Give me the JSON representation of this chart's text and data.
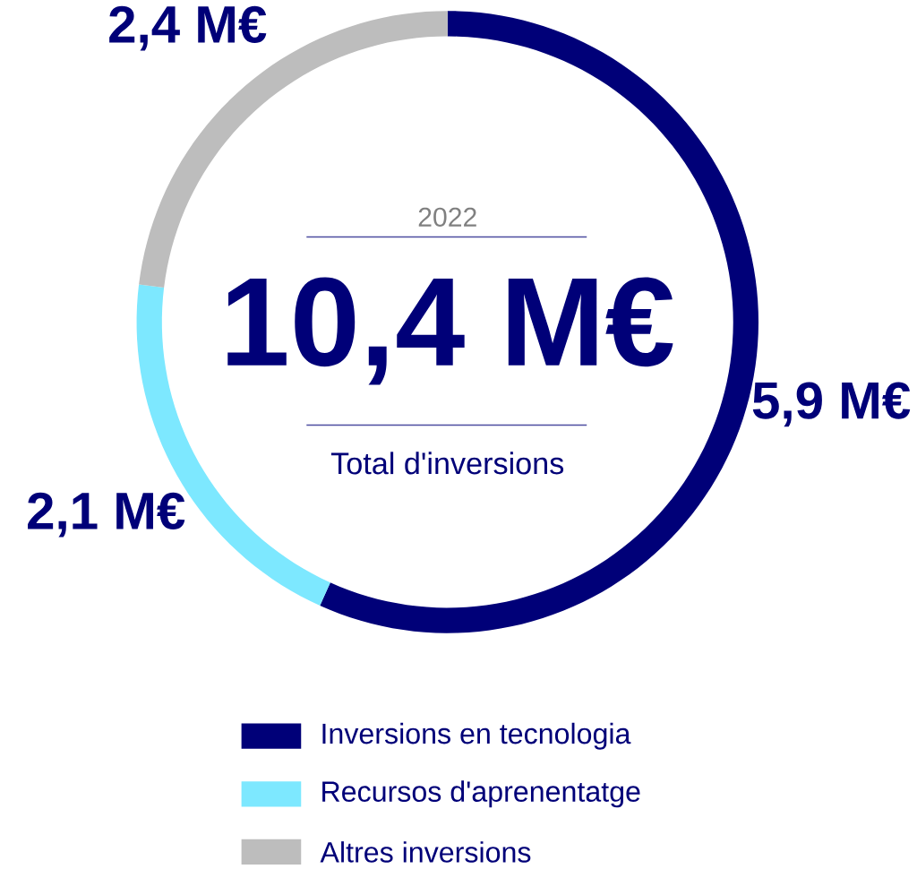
{
  "chart_data": {
    "type": "donut",
    "title": "10,4 M€",
    "subtitle": "2022",
    "annotations": [
      "Total d'inversions"
    ],
    "categories": [
      "Inversions en tecnologia",
      "Recursos d'aprenentatge",
      "Altres inversions"
    ],
    "values": [
      5.9,
      2.1,
      2.4
    ],
    "colors": [
      "#000078",
      "#7de8ff",
      "#bdbdbd"
    ],
    "value_labels": [
      "5,9 M€",
      "2,1 M€",
      "2,4 M€"
    ],
    "legend": "bottom"
  }
}
